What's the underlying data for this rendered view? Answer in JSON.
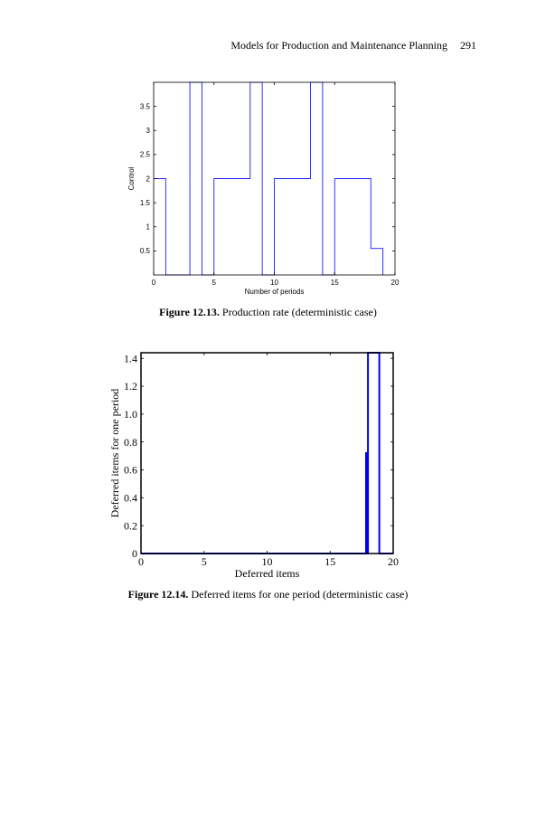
{
  "header": {
    "running_title": "Models for Production and Maintenance Planning",
    "page_number": "291"
  },
  "figures": [
    {
      "caption_label": "Figure 12.13.",
      "caption_text": " Production rate (deterministic case)"
    },
    {
      "caption_label": "Figure 12.14.",
      "caption_text": " Deferred items for one period (deterministic case)"
    }
  ],
  "chart_data": [
    {
      "type": "line",
      "xlabel": "Number of periods",
      "ylabel": "Control",
      "xlim": [
        0,
        20
      ],
      "ylim": [
        0,
        4
      ],
      "xticks": [
        "0",
        "5",
        "10",
        "15",
        "20"
      ],
      "yticks": [
        "0.5",
        "1",
        "1.5",
        "2",
        "2.5",
        "3",
        "3.5"
      ],
      "ytick_values": [
        0.5,
        1,
        1.5,
        2,
        2.5,
        3,
        3.5
      ],
      "color": "#1a1aff",
      "series": [
        {
          "x": [
            0,
            1,
            1,
            3,
            3,
            4,
            4,
            5,
            5,
            8,
            8,
            9,
            9,
            10,
            10,
            13,
            13,
            14,
            14,
            15,
            15,
            18,
            18,
            19,
            19
          ],
          "y": [
            2,
            2,
            0,
            0,
            4,
            4,
            0,
            0,
            2,
            2,
            4,
            4,
            0,
            0,
            2,
            2,
            4,
            4,
            0,
            0,
            2,
            2,
            0.55,
            0.55,
            0
          ]
        }
      ]
    },
    {
      "type": "line",
      "xlabel": "Deferred items",
      "ylabel": "Deferred items for one period",
      "xlim": [
        0,
        20
      ],
      "ylim": [
        0,
        1.44
      ],
      "xticks": [
        "0",
        "5",
        "10",
        "15",
        "20"
      ],
      "yticks": [
        "0",
        "0.2",
        "0.4",
        "0.6",
        "0.8",
        "1.0",
        "1.2",
        "1.4"
      ],
      "ytick_values": [
        0,
        0.2,
        0.4,
        0.6,
        0.8,
        1.0,
        1.2,
        1.4
      ],
      "color": "#0000ee",
      "series": [
        {
          "x": [
            0,
            17.85,
            17.85,
            17.95,
            17.95,
            18.0,
            18.0,
            18.9,
            18.9,
            20
          ],
          "y": [
            0,
            0,
            0.72,
            0.72,
            0,
            0,
            1.44,
            1.44,
            0,
            0
          ]
        }
      ]
    }
  ]
}
